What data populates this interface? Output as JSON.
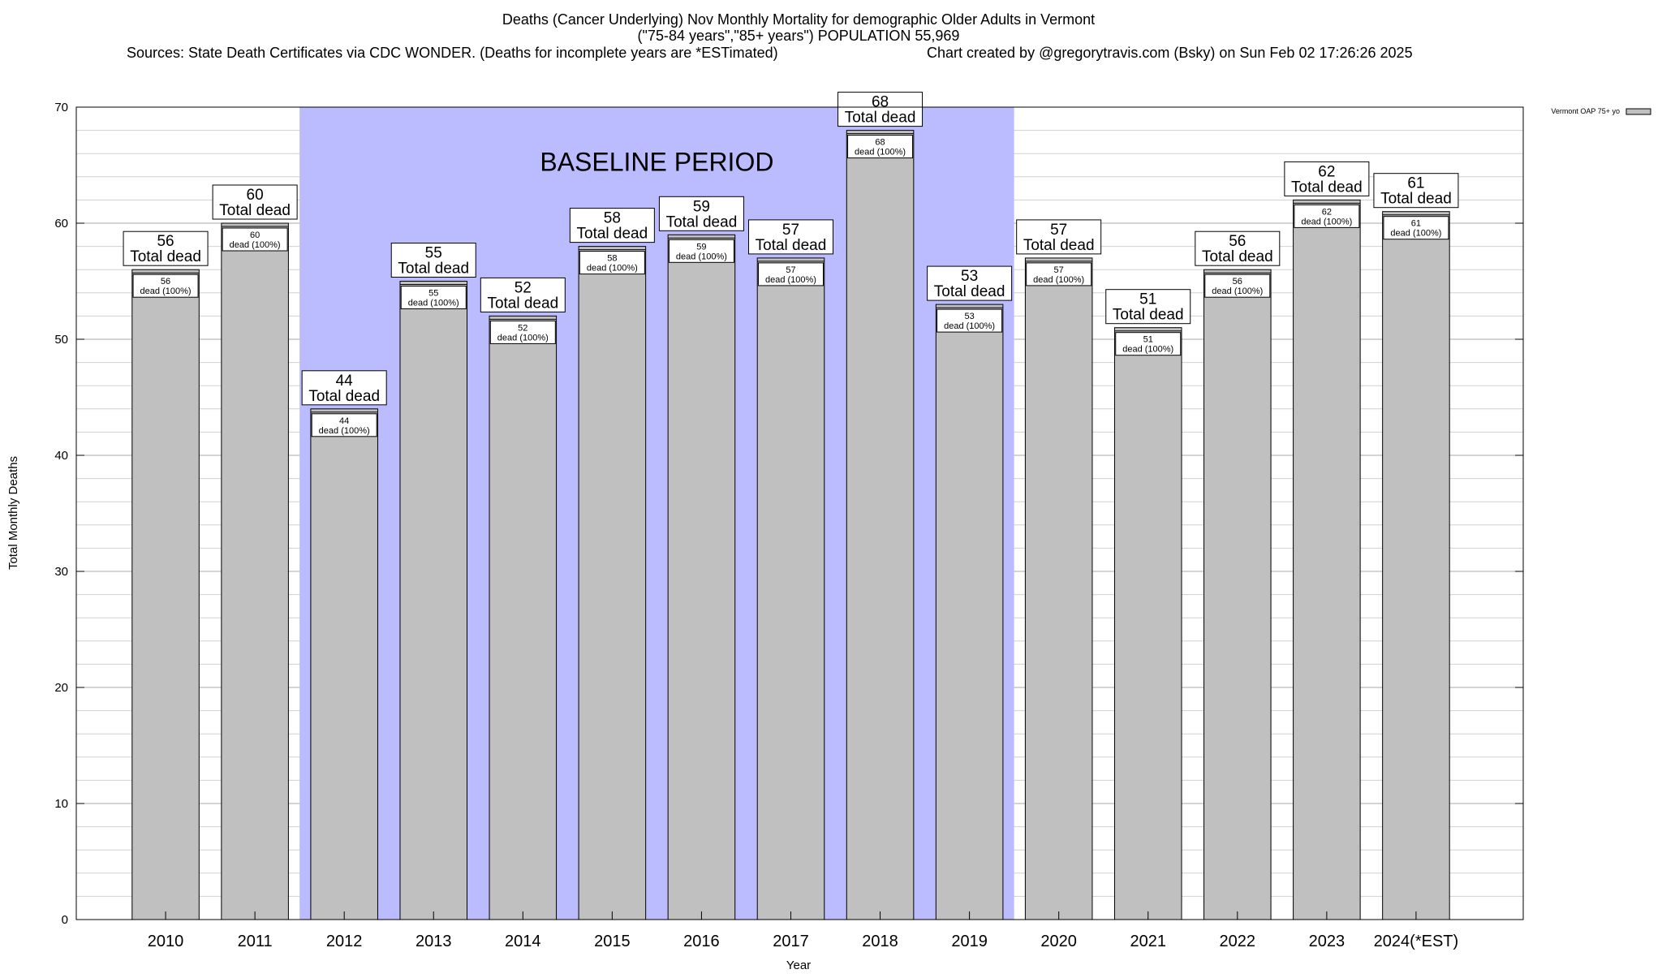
{
  "chart_data": {
    "type": "bar",
    "title_lines": [
      "Deaths (Cancer Underlying) Nov Monthly Mortality for demographic Older Adults in Vermont",
      "(\"75-84 years\",\"85+ years\") POPULATION 55,969"
    ],
    "sources_text": "Sources: State Death Certificates via CDC WONDER. (Deaths for incomplete years are *ESTimated)",
    "credit_text": "Chart created by @gregorytravis.com (Bsky) on Sun Feb 02 17:26:26 2025",
    "xlabel": "Year",
    "ylabel": "Total Monthly Deaths",
    "ylim": [
      0,
      70
    ],
    "yticks": [
      0,
      10,
      20,
      30,
      40,
      50,
      60,
      70
    ],
    "grid": true,
    "legend_position": "top-right",
    "baseline_label": "BASELINE PERIOD",
    "baseline_range": [
      "2012",
      "2019"
    ],
    "total_label_suffix": "Total dead",
    "inner_label_template": "dead (100%)",
    "categories": [
      "2010",
      "2011",
      "2012",
      "2013",
      "2014",
      "2015",
      "2016",
      "2017",
      "2018",
      "2019",
      "2020",
      "2021",
      "2022",
      "2023",
      "2024(*EST)"
    ],
    "series": [
      {
        "name": "Vermont OAP 75+ yo",
        "color": "#c0c0c0",
        "values": [
          56,
          60,
          44,
          55,
          52,
          58,
          59,
          57,
          68,
          53,
          57,
          51,
          56,
          62,
          61
        ]
      }
    ],
    "baseline_color": "#bbbbff"
  }
}
